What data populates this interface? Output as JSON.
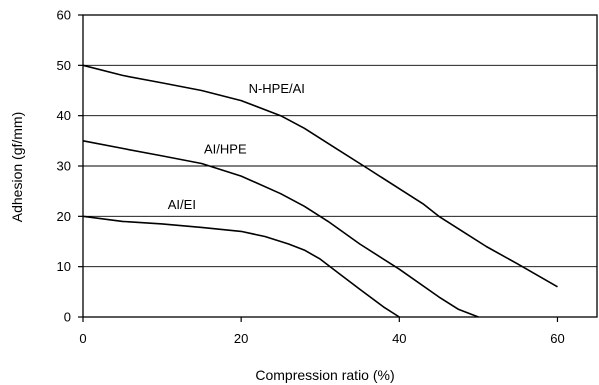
{
  "chart_data": {
    "type": "line",
    "title": "",
    "xlabel": "Compression ratio (%)",
    "ylabel": "Adhesion (gf/mm)",
    "xlim": [
      0,
      65
    ],
    "ylim": [
      0,
      60
    ],
    "x_ticks": [
      0,
      20,
      40,
      60
    ],
    "y_ticks": [
      0,
      10,
      20,
      30,
      40,
      50,
      60
    ],
    "grid": "horizontal",
    "legend": "none",
    "colors": {
      "line": "#000000",
      "grid": "#000000",
      "background": "#ffffff"
    },
    "series": [
      {
        "name": "N-HPE/AI",
        "label_at": [
          24.5,
          44.5
        ],
        "points": [
          [
            0,
            50
          ],
          [
            5,
            48
          ],
          [
            10,
            46.5
          ],
          [
            15,
            45
          ],
          [
            20,
            43
          ],
          [
            25,
            40
          ],
          [
            28,
            37.5
          ],
          [
            32,
            33.5
          ],
          [
            36,
            29.5
          ],
          [
            40,
            25.5
          ],
          [
            43,
            22.5
          ],
          [
            45,
            20
          ],
          [
            48,
            17
          ],
          [
            51,
            14
          ],
          [
            55,
            10.5
          ],
          [
            60,
            6
          ]
        ]
      },
      {
        "name": "AI/HPE",
        "label_at": [
          18,
          32.5
        ],
        "points": [
          [
            0,
            35
          ],
          [
            5,
            33.5
          ],
          [
            10,
            32
          ],
          [
            15,
            30.5
          ],
          [
            20,
            28
          ],
          [
            25,
            24.5
          ],
          [
            28,
            22
          ],
          [
            31,
            19
          ],
          [
            35,
            14.5
          ],
          [
            40,
            9.5
          ],
          [
            45,
            4
          ],
          [
            47.5,
            1.5
          ],
          [
            50,
            0
          ]
        ]
      },
      {
        "name": "AI/EI",
        "label_at": [
          12.5,
          21.5
        ],
        "points": [
          [
            0,
            20
          ],
          [
            5,
            19
          ],
          [
            10,
            18.5
          ],
          [
            15,
            17.8
          ],
          [
            20,
            17
          ],
          [
            23,
            16
          ],
          [
            26,
            14.5
          ],
          [
            28,
            13.3
          ],
          [
            30,
            11.5
          ],
          [
            32.5,
            8.5
          ],
          [
            35,
            5.5
          ],
          [
            38,
            2
          ],
          [
            40,
            0
          ]
        ]
      }
    ]
  }
}
